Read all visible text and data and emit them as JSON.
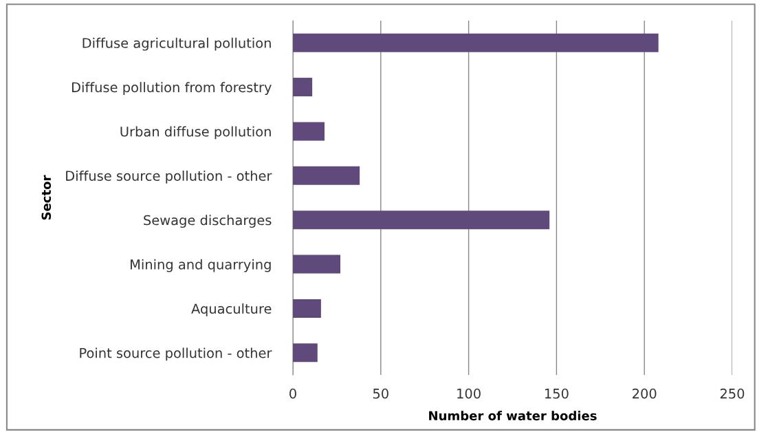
{
  "chart_data": {
    "type": "bar",
    "orientation": "horizontal",
    "categories": [
      "Diffuse agricultural pollution",
      "Diffuse pollution from forestry",
      "Urban diffuse pollution",
      "Diffuse source pollution - other",
      "Sewage discharges",
      "Mining and quarrying",
      "Aquaculture",
      "Point source pollution - other"
    ],
    "values": [
      208,
      11,
      18,
      38,
      146,
      27,
      16,
      14
    ],
    "color": "#604a7b",
    "xlabel": "Number of water bodies",
    "ylabel": "Sector",
    "xlim": [
      0,
      250
    ],
    "xticks": [
      0,
      50,
      100,
      150,
      200,
      250
    ],
    "grid": "x",
    "legend": false
  }
}
